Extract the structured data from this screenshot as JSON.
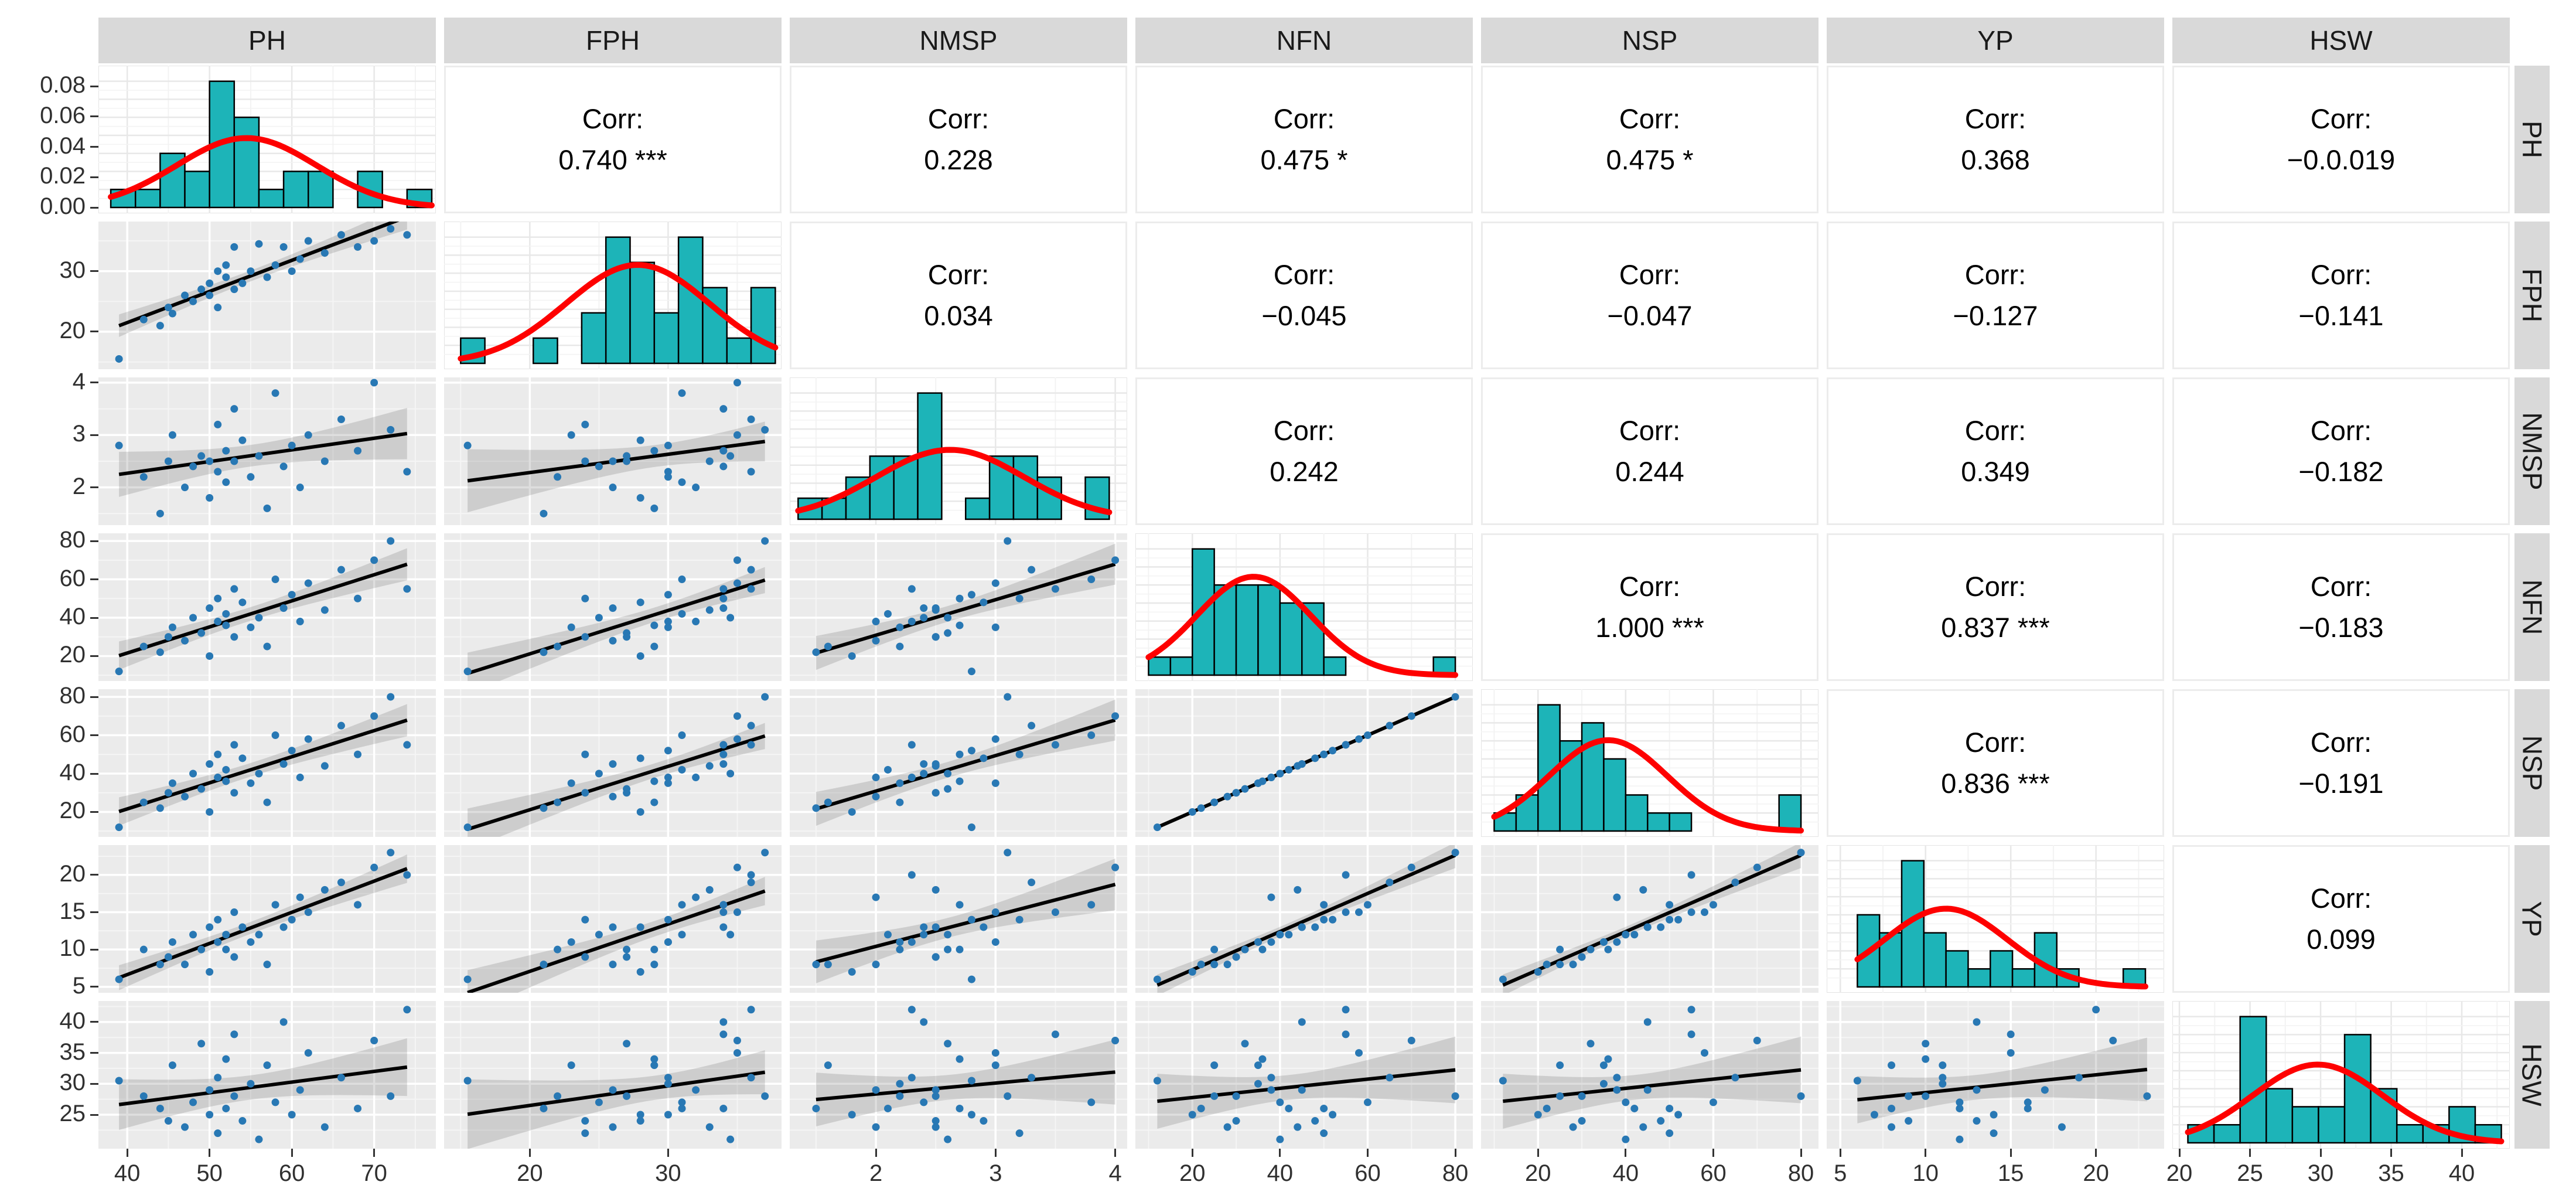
{
  "chart_data": {
    "type": "scatterplot-matrix",
    "title": "",
    "variables": [
      "PH",
      "FPH",
      "NMSP",
      "NFN",
      "NSP",
      "YP",
      "HSW"
    ],
    "corr_label": "Corr:",
    "upper_corr": [
      [
        "0.740 ***",
        "0.228",
        "0.475 *",
        "0.475 *",
        "0.368",
        "−0.0.019"
      ],
      [
        "0.034",
        "−0.045",
        "−0.047",
        "−0.127",
        "−0.141"
      ],
      [
        "0.242",
        "0.244",
        "0.349",
        "−0.182"
      ],
      [
        "1.000 ***",
        "0.837 ***",
        "−0.183"
      ],
      [
        "0.836 ***",
        "−0.191"
      ],
      [
        "0.099"
      ]
    ],
    "ranges": {
      "PH": [
        36.5,
        77.5
      ],
      "FPH": [
        13.8,
        38.2
      ],
      "NMSP": [
        1.28,
        4.1
      ],
      "NFN": [
        7,
        84
      ],
      "NSP": [
        7,
        84
      ],
      "YP": [
        4.2,
        24
      ],
      "HSW": [
        19.5,
        43.4
      ]
    },
    "x_ticks": {
      "PH": [
        40,
        50,
        60,
        70
      ],
      "FPH": [
        20,
        30
      ],
      "NMSP": [
        2,
        3,
        4
      ],
      "NFN": [
        20,
        40,
        60,
        80
      ],
      "NSP": [
        20,
        40,
        60,
        80
      ],
      "YP": [
        5,
        10,
        15,
        20
      ],
      "HSW": [
        20,
        25,
        30,
        35,
        40
      ]
    },
    "y_ticks": {
      "PH": [
        40,
        50,
        60,
        70
      ],
      "FPH": [
        20,
        30
      ],
      "NMSP": [
        2,
        3,
        4
      ],
      "NFN": [
        20,
        40,
        60,
        80
      ],
      "NSP": [
        20,
        40,
        60,
        80
      ],
      "YP": [
        5,
        10,
        15,
        20
      ],
      "HSW": [
        25,
        30,
        35,
        40
      ]
    },
    "density_axis": {
      "row_variable": "PH",
      "tick_labels": [
        "0.00",
        "0.02",
        "0.04",
        "0.06",
        "0.08"
      ],
      "tick_values": [
        0,
        0.02,
        0.04,
        0.06,
        0.08
      ],
      "max_density": 0.0833
    },
    "histograms": {
      "PH": {
        "start": 38,
        "bin_width": 3,
        "counts": [
          1,
          1,
          3,
          2,
          7,
          5,
          1,
          2,
          2,
          0,
          2,
          0,
          1
        ],
        "curve": {
          "mean": 54.5,
          "sd": 8.5,
          "peak_frac": 0.55
        }
      },
      "FPH": {
        "start": 15,
        "bin_width": 1.75,
        "counts": [
          1,
          0,
          0,
          1,
          0,
          2,
          5,
          4,
          2,
          5,
          3,
          1,
          3
        ],
        "curve": {
          "mean": 27.8,
          "sd": 5.2,
          "peak_frac": 0.78
        }
      },
      "NMSP": {
        "start": 1.35,
        "bin_width": 0.2,
        "counts": [
          1,
          1,
          2,
          3,
          3,
          6,
          0,
          1,
          3,
          3,
          2,
          0,
          2
        ],
        "curve": {
          "mean": 2.62,
          "sd": 0.62,
          "peak_frac": 0.55
        }
      },
      "NFN": {
        "start": 10,
        "bin_width": 5,
        "counts": [
          1,
          1,
          7,
          5,
          5,
          5,
          4,
          4,
          1,
          0,
          0,
          0,
          0,
          1
        ],
        "curve": {
          "mean": 34,
          "sd": 13,
          "peak_frac": 0.78
        }
      },
      "NSP": {
        "start": 10,
        "bin_width": 5,
        "counts": [
          1,
          2,
          7,
          5,
          6,
          4,
          2,
          1,
          1,
          0,
          0,
          0,
          0,
          2
        ],
        "curve": {
          "mean": 36,
          "sd": 13.5,
          "peak_frac": 0.72
        }
      },
      "YP": {
        "start": 6,
        "bin_width": 1.3,
        "counts": [
          4,
          3,
          7,
          3,
          2,
          1,
          2,
          1,
          3,
          1,
          0,
          0,
          1
        ],
        "curve": {
          "mean": 11.2,
          "sd": 3.6,
          "peak_frac": 0.62
        }
      },
      "HSW": {
        "start": 20.6,
        "bin_width": 1.85,
        "counts": [
          1,
          1,
          7,
          3,
          2,
          2,
          6,
          3,
          1,
          1,
          2,
          1
        ],
        "curve": {
          "mean": 29.8,
          "sd": 4.6,
          "peak_frac": 0.62
        }
      }
    },
    "observations": [
      {
        "PH": 39,
        "FPH": 15.5,
        "NMSP": 2.8,
        "NFN": 12,
        "NSP": 12,
        "YP": 6,
        "HSW": 30.5
      },
      {
        "PH": 42,
        "FPH": 22,
        "NMSP": 2.2,
        "NFN": 25,
        "NSP": 25,
        "YP": 10,
        "HSW": 28
      },
      {
        "PH": 44,
        "FPH": 21,
        "NMSP": 1.5,
        "NFN": 22,
        "NSP": 22,
        "YP": 8,
        "HSW": 26
      },
      {
        "PH": 45,
        "FPH": 24,
        "NMSP": 2.5,
        "NFN": 30,
        "NSP": 30,
        "YP": 9,
        "HSW": 24
      },
      {
        "PH": 45.5,
        "FPH": 23,
        "NMSP": 3.0,
        "NFN": 35,
        "NSP": 35,
        "YP": 11,
        "HSW": 33
      },
      {
        "PH": 47,
        "FPH": 26,
        "NMSP": 2.0,
        "NFN": 28,
        "NSP": 28,
        "YP": 8,
        "HSW": 23
      },
      {
        "PH": 48,
        "FPH": 25,
        "NMSP": 2.4,
        "NFN": 40,
        "NSP": 40,
        "YP": 12,
        "HSW": 27
      },
      {
        "PH": 49,
        "FPH": 27,
        "NMSP": 2.6,
        "NFN": 32,
        "NSP": 32,
        "YP": 10,
        "HSW": 36.5
      },
      {
        "PH": 50,
        "FPH": 28,
        "NMSP": 1.8,
        "NFN": 20,
        "NSP": 20,
        "YP": 7,
        "HSW": 25
      },
      {
        "PH": 50,
        "FPH": 26,
        "NMSP": 2.5,
        "NFN": 45,
        "NSP": 45,
        "YP": 13,
        "HSW": 29
      },
      {
        "PH": 51,
        "FPH": 30,
        "NMSP": 2.3,
        "NFN": 38,
        "NSP": 38,
        "YP": 11,
        "HSW": 31
      },
      {
        "PH": 51,
        "FPH": 24,
        "NMSP": 3.2,
        "NFN": 50,
        "NSP": 50,
        "YP": 14,
        "HSW": 22
      },
      {
        "PH": 52,
        "FPH": 29,
        "NMSP": 2.7,
        "NFN": 36,
        "NSP": 36,
        "YP": 10,
        "HSW": 34
      },
      {
        "PH": 52,
        "FPH": 31,
        "NMSP": 2.1,
        "NFN": 42,
        "NSP": 42,
        "YP": 12,
        "HSW": 26
      },
      {
        "PH": 53,
        "FPH": 27,
        "NMSP": 2.5,
        "NFN": 30,
        "NSP": 30,
        "YP": 9,
        "HSW": 28
      },
      {
        "PH": 53,
        "FPH": 34,
        "NMSP": 3.5,
        "NFN": 55,
        "NSP": 55,
        "YP": 15,
        "HSW": 38
      },
      {
        "PH": 54,
        "FPH": 28,
        "NMSP": 2.9,
        "NFN": 48,
        "NSP": 48,
        "YP": 13,
        "HSW": 24
      },
      {
        "PH": 55,
        "FPH": 30,
        "NMSP": 2.2,
        "NFN": 35,
        "NSP": 35,
        "YP": 11,
        "HSW": 30
      },
      {
        "PH": 56,
        "FPH": 34.5,
        "NMSP": 2.6,
        "NFN": 40,
        "NSP": 40,
        "YP": 12,
        "HSW": 21
      },
      {
        "PH": 57,
        "FPH": 29,
        "NMSP": 1.6,
        "NFN": 25,
        "NSP": 25,
        "YP": 8,
        "HSW": 33
      },
      {
        "PH": 58,
        "FPH": 31,
        "NMSP": 3.8,
        "NFN": 60,
        "NSP": 60,
        "YP": 16,
        "HSW": 27
      },
      {
        "PH": 59,
        "FPH": 34,
        "NMSP": 2.4,
        "NFN": 45,
        "NSP": 45,
        "YP": 13,
        "HSW": 40
      },
      {
        "PH": 60,
        "FPH": 30,
        "NMSP": 2.8,
        "NFN": 52,
        "NSP": 52,
        "YP": 14,
        "HSW": 25
      },
      {
        "PH": 61,
        "FPH": 32,
        "NMSP": 2.0,
        "NFN": 38,
        "NSP": 38,
        "YP": 17,
        "HSW": 29
      },
      {
        "PH": 62,
        "FPH": 35,
        "NMSP": 3.0,
        "NFN": 58,
        "NSP": 58,
        "YP": 15,
        "HSW": 35
      },
      {
        "PH": 64,
        "FPH": 33,
        "NMSP": 2.5,
        "NFN": 44,
        "NSP": 44,
        "YP": 18,
        "HSW": 23
      },
      {
        "PH": 66,
        "FPH": 36,
        "NMSP": 3.3,
        "NFN": 65,
        "NSP": 65,
        "YP": 19,
        "HSW": 31
      },
      {
        "PH": 68,
        "FPH": 34,
        "NMSP": 2.7,
        "NFN": 50,
        "NSP": 50,
        "YP": 16,
        "HSW": 26
      },
      {
        "PH": 70,
        "FPH": 35,
        "NMSP": 4.0,
        "NFN": 70,
        "NSP": 70,
        "YP": 21,
        "HSW": 37
      },
      {
        "PH": 72,
        "FPH": 37,
        "NMSP": 3.1,
        "NFN": 80,
        "NSP": 80,
        "YP": 23,
        "HSW": 28
      },
      {
        "PH": 74,
        "FPH": 36,
        "NMSP": 2.3,
        "NFN": 55,
        "NSP": 55,
        "YP": 20,
        "HSW": 42
      }
    ],
    "layout": {
      "grid": "7x7",
      "diagonal": "histogram with density curve",
      "upper_triangle": "correlation text",
      "lower_triangle": "scatter with linear fit and confidence band",
      "legend": "none"
    },
    "colors": {
      "strip_bg": "#d9d9d9",
      "panel_bg": "#ebebeb",
      "grid_major": "#ffffff",
      "grid_minor": "#f5f5f5",
      "diag_grid_major": "#e8e8e8",
      "diag_grid_minor": "#f3f3f3",
      "hist_fill": "#1db4b8",
      "hist_stroke": "#000000",
      "density_curve": "#fe0000",
      "point": "#2878b4",
      "regression_line": "#000000",
      "ribbon": "rgba(70,70,70,0.18)",
      "text": "#000000",
      "tick_text": "#303030"
    }
  }
}
